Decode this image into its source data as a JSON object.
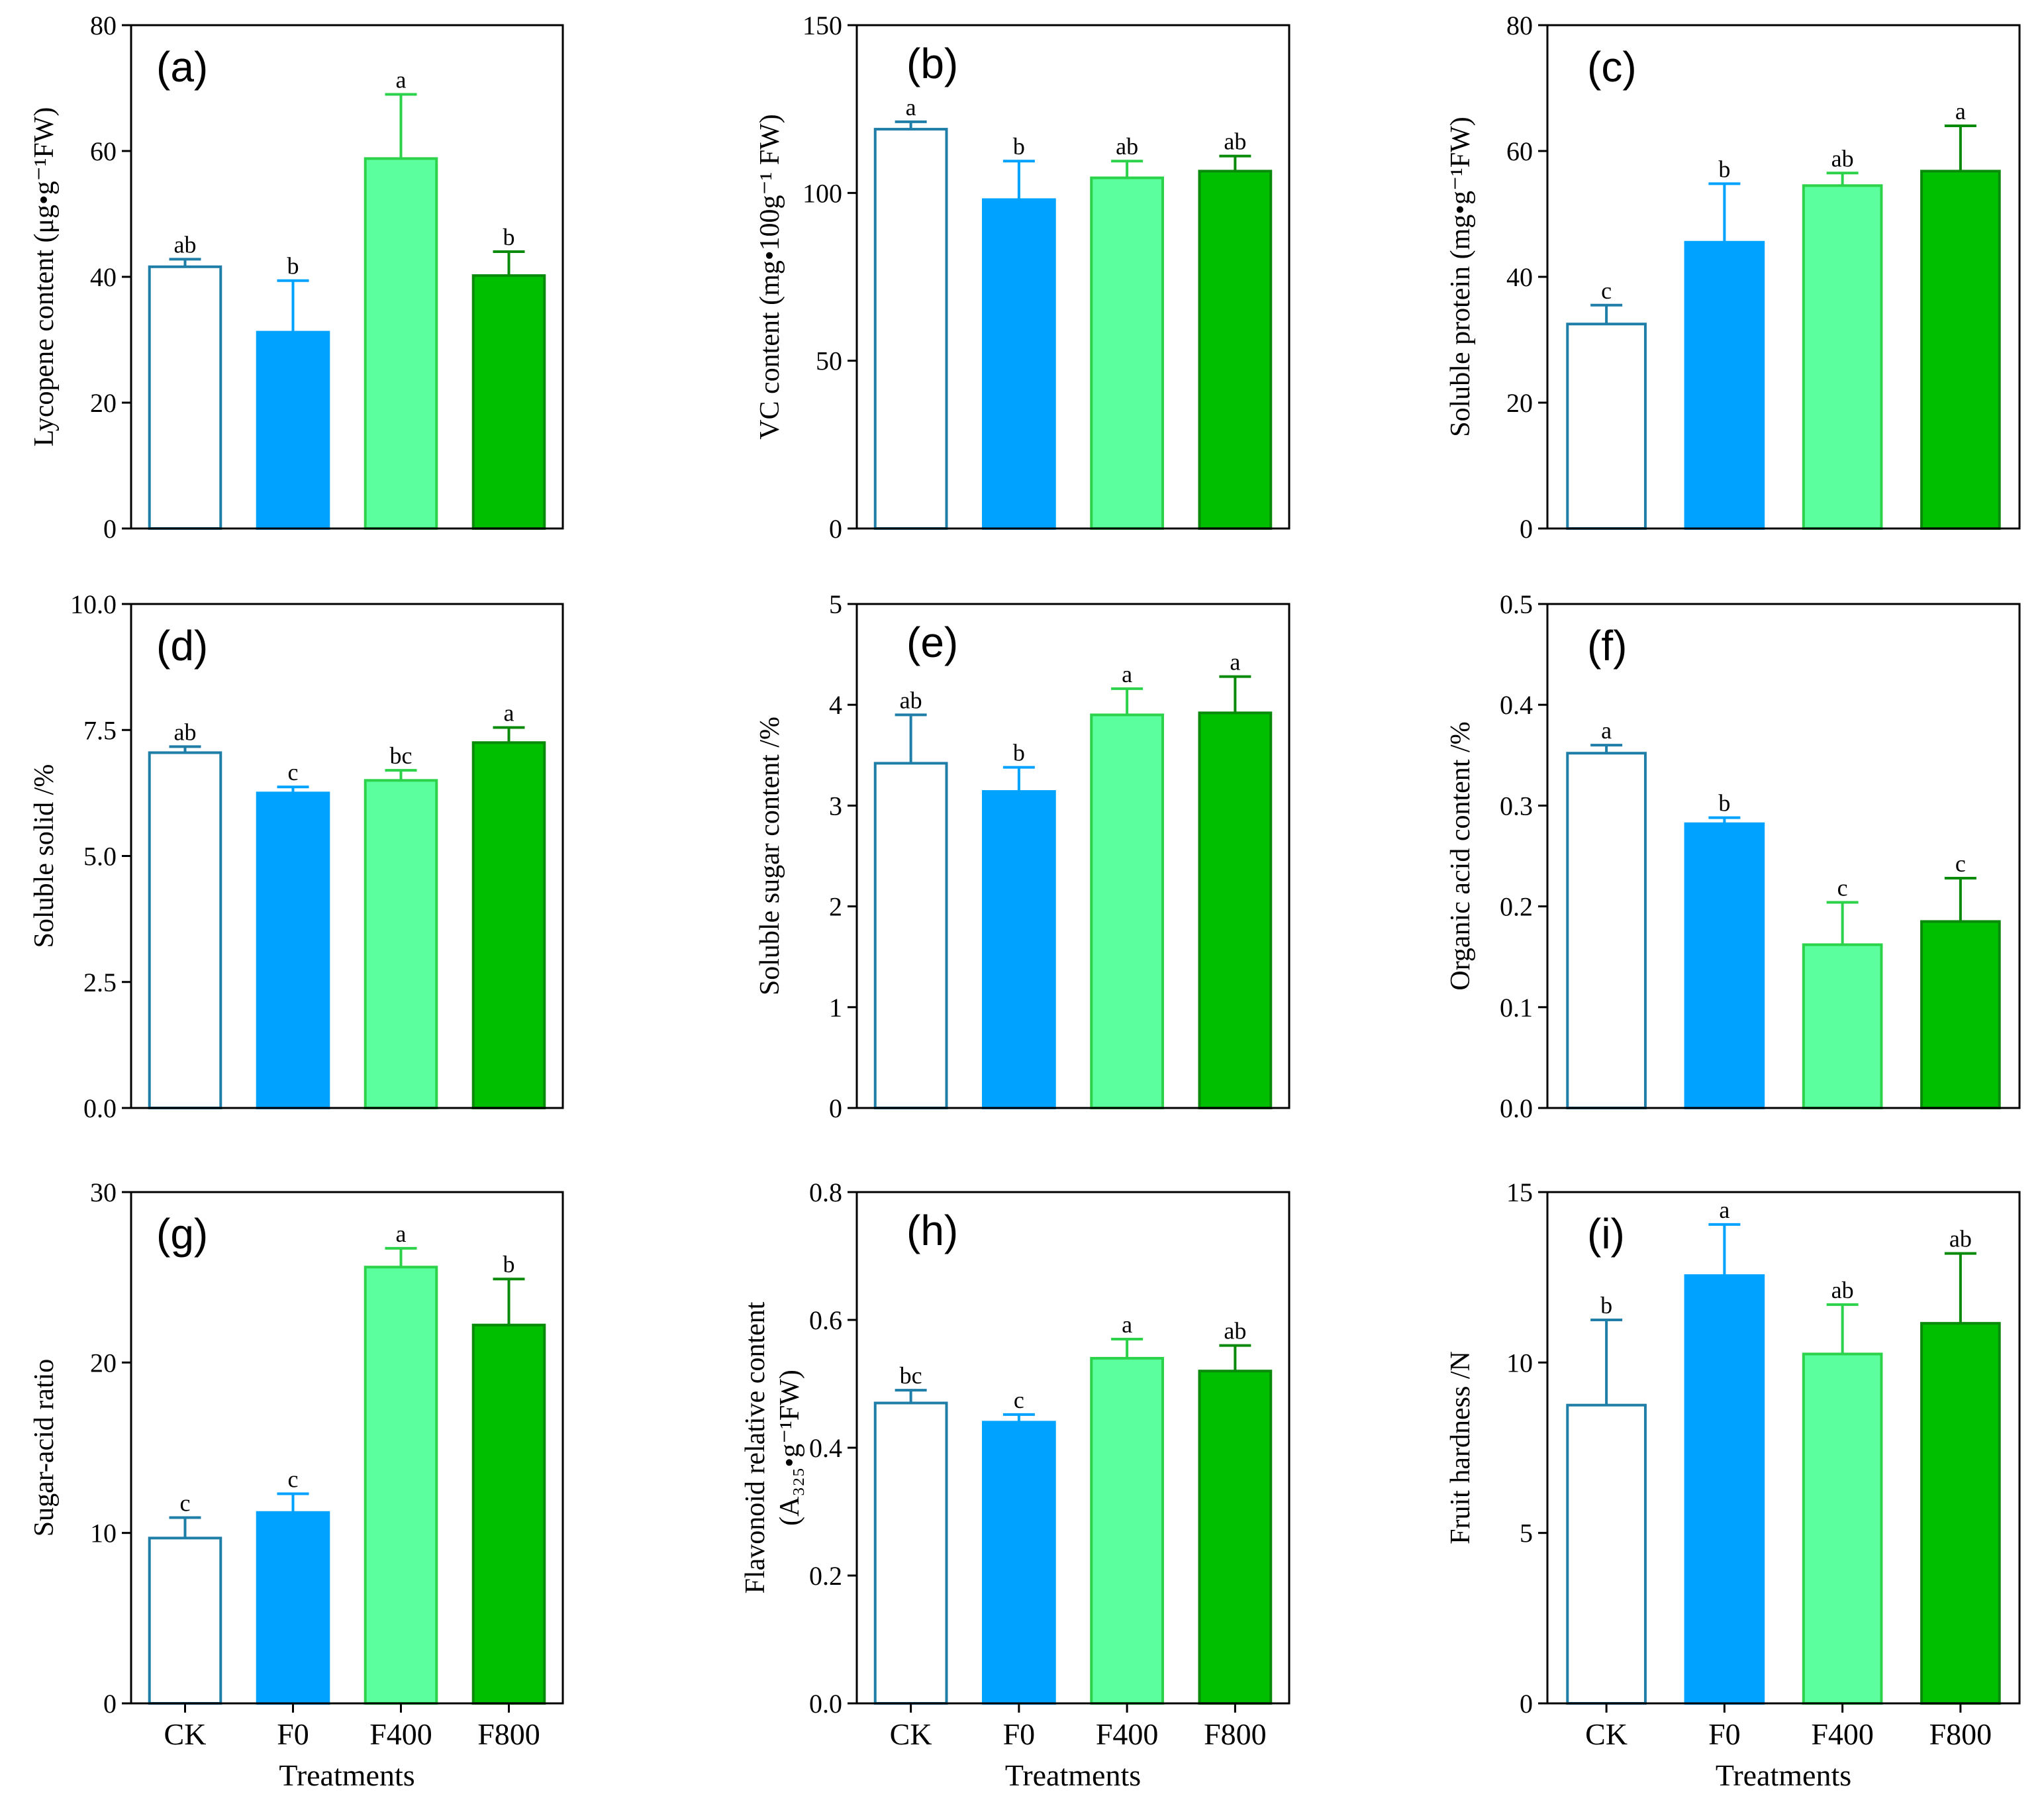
{
  "colors": {
    "CK_edge": "#1f7ea8",
    "CK_fill": "#ffffff",
    "F0": "#00a2ff",
    "F400_fill": "#5cff9d",
    "F400_edge": "#2bd24a",
    "F800_fill": "#00bf00",
    "F800_edge": "#0a8a0a"
  },
  "chart_data": [
    {
      "id": "a",
      "type": "bar",
      "panel_label": "(a)",
      "ylabel": "Lycopene content (μg•g⁻¹FW)",
      "ylim": [
        0,
        80
      ],
      "yticks": [
        "0",
        "20",
        "40",
        "60",
        "80"
      ],
      "categories": [
        "CK",
        "F0",
        "F400",
        "F800"
      ],
      "values": [
        41.6,
        31.2,
        58.8,
        40.2
      ],
      "errors": [
        1.2,
        8.2,
        10.2,
        3.8
      ],
      "labels": [
        "ab",
        "b",
        "a",
        "b"
      ],
      "show_xticklabels": false,
      "xlabel": ""
    },
    {
      "id": "b",
      "type": "bar",
      "panel_label": "(b)",
      "ylabel": "VC content (mg•100g⁻¹ FW)",
      "ylim": [
        0,
        150
      ],
      "yticks": [
        "0",
        "50",
        "100",
        "150"
      ],
      "categories": [
        "CK",
        "F0",
        "F400",
        "F800"
      ],
      "values": [
        119,
        98,
        104.5,
        106.5
      ],
      "errors": [
        2.2,
        11.5,
        5,
        4.5
      ],
      "labels": [
        "a",
        "b",
        "ab",
        "ab"
      ],
      "show_xticklabels": false,
      "xlabel": ""
    },
    {
      "id": "c",
      "type": "bar",
      "panel_label": "(c)",
      "ylabel": "Soluble protein (mg•g⁻¹FW)",
      "ylim": [
        0,
        80
      ],
      "yticks": [
        "0",
        "20",
        "40",
        "60",
        "80"
      ],
      "categories": [
        "CK",
        "F0",
        "F400",
        "F800"
      ],
      "values": [
        32.5,
        45.5,
        54.5,
        56.8
      ],
      "errors": [
        3,
        9.3,
        2,
        7.2
      ],
      "labels": [
        "c",
        "b",
        "ab",
        "a"
      ],
      "show_xticklabels": false,
      "xlabel": ""
    },
    {
      "id": "d",
      "type": "bar",
      "panel_label": "(d)",
      "ylabel": "Soluble solid /%",
      "ylim": [
        0,
        10
      ],
      "yticks": [
        "0.0",
        "2.5",
        "5.0",
        "7.5",
        "10.0"
      ],
      "categories": [
        "CK",
        "F0",
        "F400",
        "F800"
      ],
      "values": [
        7.05,
        6.25,
        6.5,
        7.25
      ],
      "errors": [
        0.12,
        0.12,
        0.2,
        0.3
      ],
      "labels": [
        "ab",
        "c",
        "bc",
        "a"
      ],
      "show_xticklabels": false,
      "xlabel": ""
    },
    {
      "id": "e",
      "type": "bar",
      "panel_label": "(e)",
      "ylabel": "Soluble sugar content /%",
      "ylim": [
        0,
        5
      ],
      "yticks": [
        "0",
        "1",
        "2",
        "3",
        "4",
        "5"
      ],
      "categories": [
        "CK",
        "F0",
        "F400",
        "F800"
      ],
      "values": [
        3.42,
        3.14,
        3.9,
        3.92
      ],
      "errors": [
        0.48,
        0.24,
        0.26,
        0.36
      ],
      "labels": [
        "ab",
        "b",
        "a",
        "a"
      ],
      "show_xticklabels": false,
      "xlabel": ""
    },
    {
      "id": "f",
      "type": "bar",
      "panel_label": "(f)",
      "ylabel": "Organic acid content /%",
      "ylim": [
        0,
        0.5
      ],
      "yticks": [
        "0.0",
        "0.1",
        "0.2",
        "0.3",
        "0.4",
        "0.5"
      ],
      "categories": [
        "CK",
        "F0",
        "F400",
        "F800"
      ],
      "values": [
        0.352,
        0.282,
        0.162,
        0.185
      ],
      "errors": [
        0.008,
        0.006,
        0.042,
        0.043
      ],
      "labels": [
        "a",
        "b",
        "c",
        "c"
      ],
      "show_xticklabels": false,
      "xlabel": ""
    },
    {
      "id": "g",
      "type": "bar",
      "panel_label": "(g)",
      "ylabel": "Sugar-acid ratio",
      "ylim": [
        0,
        30
      ],
      "yticks": [
        "0",
        "10",
        "20",
        "30"
      ],
      "categories": [
        "CK",
        "F0",
        "F400",
        "F800"
      ],
      "values": [
        9.7,
        11.2,
        25.6,
        22.2
      ],
      "errors": [
        1.2,
        1.1,
        1.1,
        2.7
      ],
      "labels": [
        "c",
        "c",
        "a",
        "b"
      ],
      "show_xticklabels": true,
      "xlabel": "Treatments"
    },
    {
      "id": "h",
      "type": "bar",
      "panel_label": "(h)",
      "ylabel": "Flavonoid relative content",
      "ylabel2": "(A₃₂₅•g⁻¹FW)",
      "ylim": [
        0,
        0.8
      ],
      "yticks": [
        "0.0",
        "0.2",
        "0.4",
        "0.6",
        "0.8"
      ],
      "categories": [
        "CK",
        "F0",
        "F400",
        "F800"
      ],
      "values": [
        0.47,
        0.44,
        0.54,
        0.52
      ],
      "errors": [
        0.02,
        0.012,
        0.03,
        0.04
      ],
      "labels": [
        "bc",
        "c",
        "a",
        "ab"
      ],
      "show_xticklabels": true,
      "xlabel": "Treatments"
    },
    {
      "id": "i",
      "type": "bar",
      "panel_label": "(i)",
      "ylabel": "Fruit hardness /N",
      "ylim": [
        0,
        15
      ],
      "yticks": [
        "0",
        "5",
        "10",
        "15"
      ],
      "categories": [
        "CK",
        "F0",
        "F400",
        "F800"
      ],
      "values": [
        8.75,
        12.55,
        10.25,
        11.15
      ],
      "errors": [
        2.5,
        1.5,
        1.45,
        2.05
      ],
      "labels": [
        "b",
        "a",
        "ab",
        "ab"
      ],
      "show_xticklabels": true,
      "xlabel": "Treatments"
    }
  ]
}
